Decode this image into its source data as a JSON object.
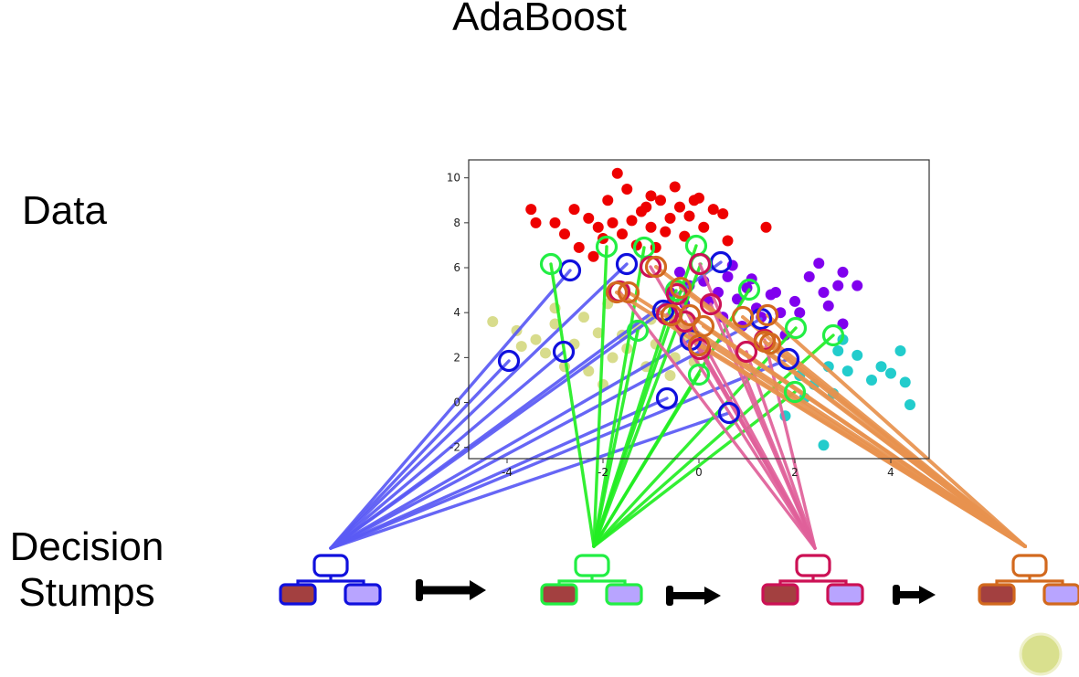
{
  "title": "AdaBoost",
  "labels": {
    "data": "Data",
    "stumps_line1": "Decision",
    "stumps_line2": "Stumps"
  },
  "colors": {
    "stump_blue": "#1010dd",
    "stump_green": "#22ee44",
    "stump_crimson": "#cc1155",
    "stump_orange": "#d2691e",
    "line_blue": "#5a5af5",
    "line_green": "#22ee22",
    "line_pink": "#e0609a",
    "line_orange": "#e8924e",
    "leaf_left": "#a34040",
    "leaf_right": "#b8a4ff",
    "cluster_red": "#ee0000",
    "cluster_purple": "#8000ee",
    "cluster_olive": "#d8dc8c",
    "cluster_cyan": "#22cccc"
  },
  "chart_data": {
    "type": "scatter",
    "title": "",
    "xlabel": "",
    "ylabel": "",
    "xlim": [
      -4.8,
      4.8
    ],
    "ylim": [
      -2.5,
      10.8
    ],
    "x_ticks": [
      "-4",
      "-2",
      "0",
      "2",
      "4"
    ],
    "y_ticks": [
      "-2",
      "0",
      "2",
      "4",
      "6",
      "8",
      "10"
    ],
    "grid": false,
    "series": [
      {
        "color": "#ee0000",
        "points": [
          [
            -2.5,
            6.9
          ],
          [
            -2.0,
            7.3
          ],
          [
            -2.3,
            8.2
          ],
          [
            -1.8,
            8.0
          ],
          [
            -1.6,
            7.5
          ],
          [
            -1.4,
            8.1
          ],
          [
            -1.2,
            8.5
          ],
          [
            -1.0,
            7.8
          ],
          [
            -0.8,
            9.0
          ],
          [
            -0.6,
            8.2
          ],
          [
            -0.4,
            8.7
          ],
          [
            -0.2,
            8.3
          ],
          [
            0.0,
            9.1
          ],
          [
            0.3,
            8.6
          ],
          [
            0.5,
            8.4
          ],
          [
            -1.9,
            9.0
          ],
          [
            -2.8,
            7.5
          ],
          [
            -3.0,
            8.0
          ],
          [
            -1.5,
            9.5
          ],
          [
            -1.0,
            9.2
          ],
          [
            -0.5,
            9.6
          ],
          [
            -0.1,
            9.0
          ],
          [
            0.6,
            7.2
          ],
          [
            1.4,
            7.8
          ],
          [
            -1.7,
            10.2
          ],
          [
            -2.2,
            6.5
          ],
          [
            -1.3,
            7.0
          ],
          [
            -0.9,
            6.9
          ],
          [
            -0.7,
            7.6
          ],
          [
            -0.3,
            7.4
          ],
          [
            0.1,
            7.8
          ],
          [
            -2.6,
            8.6
          ],
          [
            -1.1,
            8.7
          ],
          [
            -3.5,
            8.6
          ],
          [
            -3.4,
            8.0
          ],
          [
            -2.1,
            7.8
          ]
        ]
      },
      {
        "color": "#8000ee",
        "points": [
          [
            -0.4,
            5.8
          ],
          [
            -0.2,
            5.2
          ],
          [
            0.1,
            5.4
          ],
          [
            0.4,
            4.9
          ],
          [
            0.6,
            5.6
          ],
          [
            0.8,
            4.6
          ],
          [
            1.0,
            5.1
          ],
          [
            1.2,
            4.2
          ],
          [
            1.5,
            4.8
          ],
          [
            1.7,
            4.0
          ],
          [
            2.0,
            4.5
          ],
          [
            2.3,
            5.6
          ],
          [
            2.6,
            4.9
          ],
          [
            2.9,
            5.2
          ],
          [
            3.0,
            3.5
          ],
          [
            3.3,
            5.2
          ],
          [
            2.5,
            6.2
          ],
          [
            2.1,
            4.0
          ],
          [
            1.3,
            3.8
          ],
          [
            0.9,
            3.4
          ],
          [
            0.5,
            3.8
          ],
          [
            0.2,
            4.5
          ],
          [
            -0.3,
            4.4
          ],
          [
            -0.6,
            4.9
          ],
          [
            1.8,
            3.0
          ],
          [
            1.1,
            5.5
          ],
          [
            2.7,
            4.3
          ],
          [
            0.7,
            6.1
          ],
          [
            1.6,
            4.9
          ],
          [
            3.0,
            5.8
          ]
        ]
      },
      {
        "color": "#d8dc8c",
        "points": [
          [
            -4.3,
            3.6
          ],
          [
            -3.8,
            3.2
          ],
          [
            -3.4,
            2.8
          ],
          [
            -3.0,
            3.5
          ],
          [
            -2.6,
            2.6
          ],
          [
            -2.4,
            3.8
          ],
          [
            -2.1,
            3.1
          ],
          [
            -1.8,
            2.0
          ],
          [
            -1.5,
            2.4
          ],
          [
            -1.3,
            3.4
          ],
          [
            -1.1,
            1.6
          ],
          [
            -0.9,
            2.6
          ],
          [
            -0.6,
            1.2
          ],
          [
            -0.3,
            2.9
          ],
          [
            -0.1,
            1.8
          ],
          [
            -3.2,
            2.2
          ],
          [
            -2.8,
            1.6
          ],
          [
            -2.0,
            0.8
          ],
          [
            -1.6,
            3.0
          ],
          [
            -1.0,
            3.7
          ],
          [
            -0.5,
            2.0
          ],
          [
            -2.3,
            1.4
          ],
          [
            -3.7,
            2.5
          ],
          [
            -1.9,
            4.4
          ],
          [
            -3.0,
            4.2
          ]
        ]
      },
      {
        "color": "#22cccc",
        "points": [
          [
            2.1,
            1.2
          ],
          [
            2.4,
            0.8
          ],
          [
            2.7,
            1.6
          ],
          [
            2.9,
            2.3
          ],
          [
            3.1,
            1.4
          ],
          [
            3.3,
            2.1
          ],
          [
            3.6,
            1.0
          ],
          [
            3.8,
            1.6
          ],
          [
            4.0,
            1.3
          ],
          [
            4.2,
            2.3
          ],
          [
            4.3,
            0.9
          ],
          [
            4.4,
            -0.1
          ],
          [
            2.8,
            0.4
          ],
          [
            3.0,
            2.8
          ],
          [
            2.6,
            -1.9
          ],
          [
            2.2,
            0.2
          ],
          [
            1.8,
            -0.6
          ]
        ]
      }
    ]
  }
}
